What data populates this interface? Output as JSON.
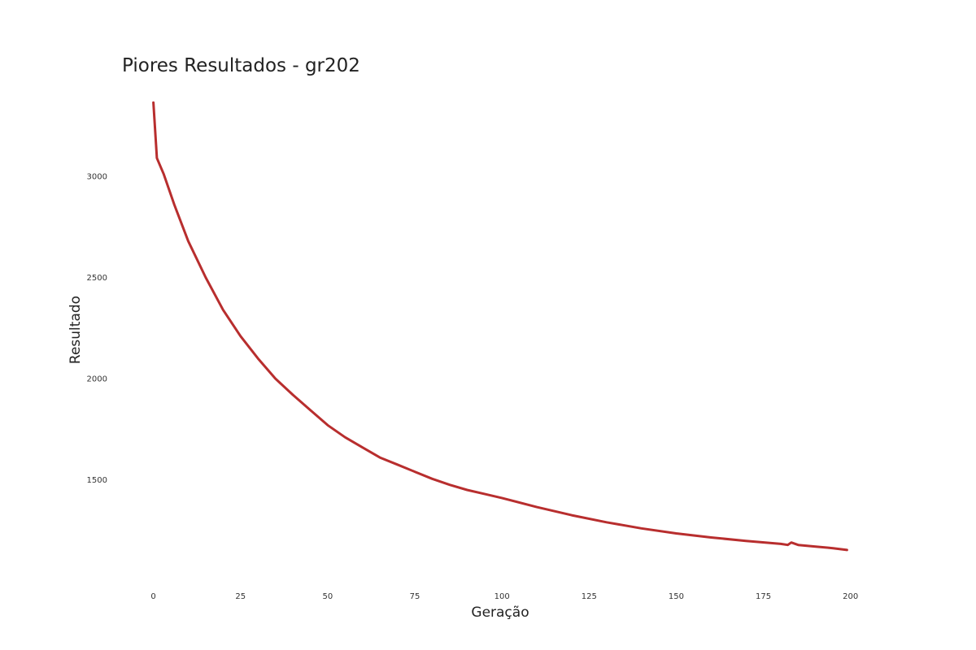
{
  "chart_data": {
    "type": "line",
    "title": "Piores Resultados - gr202",
    "xlabel": "Geração",
    "ylabel": "Resultado",
    "xlim": [
      -9,
      208
    ],
    "ylim": [
      1000,
      3450
    ],
    "xticks": [
      0,
      25,
      50,
      75,
      100,
      125,
      150,
      175,
      200
    ],
    "yticks": [
      1500,
      2000,
      2500,
      3000
    ],
    "grid": false,
    "legend": "none",
    "series": [
      {
        "color": "#b82e2e",
        "x": [
          0,
          1,
          3,
          6,
          10,
          15,
          20,
          25,
          30,
          35,
          40,
          45,
          50,
          55,
          60,
          65,
          70,
          75,
          80,
          85,
          90,
          95,
          100,
          110,
          120,
          130,
          140,
          150,
          160,
          170,
          180,
          182,
          183,
          185,
          190,
          195,
          199
        ],
        "y": [
          3365,
          3090,
          3010,
          2860,
          2680,
          2500,
          2340,
          2210,
          2100,
          2000,
          1920,
          1845,
          1770,
          1710,
          1660,
          1610,
          1575,
          1540,
          1505,
          1475,
          1450,
          1430,
          1410,
          1365,
          1325,
          1290,
          1260,
          1235,
          1215,
          1198,
          1183,
          1178,
          1190,
          1178,
          1170,
          1162,
          1153
        ]
      }
    ]
  }
}
